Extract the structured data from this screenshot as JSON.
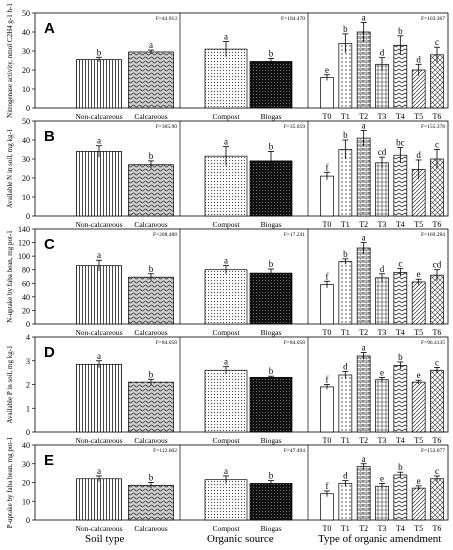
{
  "figure": {
    "bottom_labels": [
      "Soil type",
      "Organic source",
      "Type of organic amendment"
    ]
  },
  "chart_data": [
    {
      "type": "bar",
      "panel": "A",
      "ylabel": "Nitrogenase activity, nmol C2H4 g-1 h-1",
      "ylim": [
        0,
        50
      ],
      "yticks": [
        0,
        10,
        20,
        30,
        40,
        50
      ],
      "groups": [
        {
          "f": "F=44.913",
          "categories": [
            "Non-calcareous",
            "Calcareous"
          ],
          "values": [
            25.5,
            29.5
          ],
          "errors": [
            1.2,
            1.0
          ],
          "letters": [
            "b",
            "a"
          ]
        },
        {
          "f": "F=104.470",
          "categories": [
            "Compost",
            "Biogas"
          ],
          "values": [
            31,
            24.5
          ],
          "errors": [
            4.0,
            1.5
          ],
          "letters": [
            "a",
            "b"
          ]
        },
        {
          "f": "F=103.367",
          "categories": [
            "T0",
            "T1",
            "T2",
            "T3",
            "T4",
            "T5",
            "T6"
          ],
          "values": [
            16,
            34,
            40,
            23,
            33,
            20,
            28
          ],
          "errors": [
            1.5,
            5,
            5,
            3.5,
            5,
            3,
            4
          ],
          "letters": [
            "e",
            "b",
            "a",
            "d",
            "b",
            "d",
            "c"
          ]
        }
      ]
    },
    {
      "type": "bar",
      "panel": "B",
      "ylabel": "Available N in soil, mg kg-1",
      "ylim": [
        0,
        50
      ],
      "yticks": [
        0,
        10,
        20,
        30,
        40,
        50
      ],
      "groups": [
        {
          "f": "F=305.90",
          "categories": [
            "Non-calcareous",
            "Calcareous"
          ],
          "values": [
            34,
            27
          ],
          "errors": [
            3,
            2
          ],
          "letters": [
            "a",
            "b"
          ]
        },
        {
          "f": "F=35.059",
          "categories": [
            "Compost",
            "Biogas"
          ],
          "values": [
            31.5,
            29
          ],
          "errors": [
            5,
            5
          ],
          "letters": [
            "a",
            "b"
          ]
        },
        {
          "f": "F=155.378",
          "categories": [
            "T0",
            "T1",
            "T2",
            "T3",
            "T4",
            "T5",
            "T6"
          ],
          "values": [
            21,
            35,
            41,
            28,
            32,
            24.5,
            30
          ],
          "errors": [
            2,
            5,
            4,
            3,
            4,
            5,
            5
          ],
          "letters": [
            "f",
            "b",
            "a",
            "cd",
            "bc",
            "d",
            "c"
          ]
        }
      ]
    },
    {
      "type": "bar",
      "panel": "C",
      "ylabel": "N-uptake by faba bean, mg pot-1",
      "ylim": [
        0,
        140
      ],
      "yticks": [
        0,
        20,
        40,
        60,
        80,
        100,
        120,
        140
      ],
      "groups": [
        {
          "f": "F=208.488",
          "categories": [
            "Non-calcareous",
            "Calcareous"
          ],
          "values": [
            86,
            69
          ],
          "errors": [
            8,
            5
          ],
          "letters": [
            "a",
            "b"
          ]
        },
        {
          "f": "F=17.241",
          "categories": [
            "Compost",
            "Biogas"
          ],
          "values": [
            80,
            75
          ],
          "errors": [
            6,
            6
          ],
          "letters": [
            "a",
            "b"
          ]
        },
        {
          "f": "F=169.284",
          "categories": [
            "T0",
            "T1",
            "T2",
            "T3",
            "T4",
            "T5",
            "T6"
          ],
          "values": [
            58,
            92,
            112,
            68,
            76,
            62,
            72
          ],
          "errors": [
            5,
            4,
            8,
            6,
            6,
            4,
            8
          ],
          "letters": [
            "f",
            "b",
            "a",
            "d",
            "c",
            "e",
            "cd"
          ]
        }
      ]
    },
    {
      "type": "bar",
      "panel": "D",
      "ylabel": "Available P in soil, mg kg-1",
      "ylim": [
        0,
        4
      ],
      "yticks": [
        0,
        1,
        2,
        3,
        4
      ],
      "groups": [
        {
          "f": "F=84.058",
          "categories": [
            "Non-calcareous",
            "Calcareous"
          ],
          "values": [
            2.85,
            2.1
          ],
          "errors": [
            0.15,
            0.12
          ],
          "letters": [
            "a",
            "b"
          ]
        },
        {
          "f": "F=84.058",
          "categories": [
            "Compost",
            "Biogas"
          ],
          "values": [
            2.6,
            2.3
          ],
          "errors": [
            0.15,
            0.05
          ],
          "letters": [
            "a",
            "b"
          ]
        },
        {
          "f": "F=96.4135",
          "categories": [
            "T0",
            "T1",
            "T2",
            "T3",
            "T4",
            "T5",
            "T6"
          ],
          "values": [
            1.9,
            2.4,
            3.2,
            2.2,
            2.8,
            2.1,
            2.6
          ],
          "errors": [
            0.1,
            0.15,
            0.15,
            0.1,
            0.15,
            0.08,
            0.12
          ],
          "letters": [
            "f",
            "d",
            "a",
            "e",
            "b",
            "e",
            "c"
          ]
        }
      ]
    },
    {
      "type": "bar",
      "panel": "E",
      "ylabel": "P-uptake by faba bean, mg pot-1",
      "ylim": [
        0,
        40
      ],
      "yticks": [
        0,
        10,
        20,
        30,
        40
      ],
      "groups": [
        {
          "f": "F=112.602",
          "categories": [
            "Non-calcareous",
            "Calcareous"
          ],
          "values": [
            22,
            18.5
          ],
          "errors": [
            1.5,
            1.5
          ],
          "letters": [
            "a",
            "b"
          ]
        },
        {
          "f": "F=47.494",
          "categories": [
            "Compost",
            "Biogas"
          ],
          "values": [
            21.5,
            19.5
          ],
          "errors": [
            2,
            1.5
          ],
          "letters": [
            "a",
            "b"
          ]
        },
        {
          "f": "F=153.077",
          "categories": [
            "T0",
            "T1",
            "T2",
            "T3",
            "T4",
            "T5",
            "T6"
          ],
          "values": [
            14,
            19.5,
            28.5,
            18,
            24,
            17,
            22
          ],
          "errors": [
            1.5,
            1.5,
            1.5,
            1.5,
            1.5,
            1.2,
            1.5
          ],
          "letters": [
            "f",
            "d",
            "a",
            "e",
            "b",
            "e",
            "c"
          ]
        }
      ]
    }
  ]
}
